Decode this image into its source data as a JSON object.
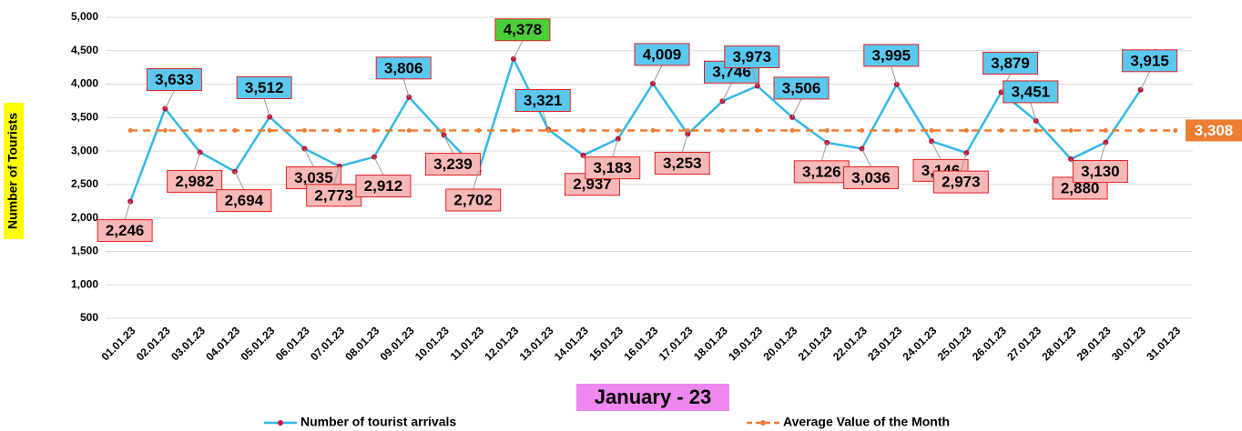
{
  "chart_data": {
    "type": "line",
    "x_label": "January - 23",
    "y_label": "Number of Tourists",
    "categories": [
      "01.01.23",
      "02.01.23",
      "03.01.23",
      "04.01.23",
      "05.01.23",
      "06.01.23",
      "07.01.23",
      "08.01.23",
      "09.01.23",
      "10.01.23",
      "11.01.23",
      "12.01.23",
      "13.01.23",
      "14.01.23",
      "15.01.23",
      "16.01.23",
      "17.01.23",
      "18.01.23",
      "19.01.23",
      "20.01.23",
      "21.01.23",
      "22.01.23",
      "23.01.23",
      "24.01.23",
      "25.01.23",
      "26.01.23",
      "27.01.23",
      "28.01.23",
      "29.01.23",
      "30.01.23",
      "31.01.23"
    ],
    "series": [
      {
        "name": "Number of tourist arrivals",
        "color": "#33b8e8",
        "marker_color": "#c0143c",
        "values": [
          2246,
          3633,
          2982,
          2694,
          3512,
          3035,
          2773,
          2912,
          3806,
          3239,
          2702,
          4378,
          3321,
          2937,
          3183,
          4009,
          3253,
          3746,
          3973,
          3506,
          3126,
          3036,
          3995,
          3146,
          2973,
          3879,
          3451,
          2880,
          3130,
          3915,
          null
        ],
        "value_labels": [
          "2,246",
          "3,633",
          "2,982",
          "2,694",
          "3,512",
          "3,035",
          "2,773",
          "2,912",
          "3,806",
          "3,239",
          "2,702",
          "4,378",
          "3,321",
          "2,937",
          "3,183",
          "4,009",
          "3,253",
          "3,746",
          "3,973",
          "3,506",
          "3,126",
          "3,036",
          "3,995",
          "3,146",
          "2,973",
          "3,879",
          "3,451",
          "2,880",
          "3,130",
          "3,915",
          null
        ]
      },
      {
        "name": "Average Value of the Month",
        "color": "#ed7d31",
        "dashed": true,
        "values": [
          3308,
          3308,
          3308,
          3308,
          3308,
          3308,
          3308,
          3308,
          3308,
          3308,
          3308,
          3308,
          3308,
          3308,
          3308,
          3308,
          3308,
          3308,
          3308,
          3308,
          3308,
          3308,
          3308,
          3308,
          3308,
          3308,
          3308,
          3308,
          3308,
          3308,
          3308
        ],
        "value_labels": [
          null,
          null,
          null,
          null,
          null,
          null,
          null,
          null,
          null,
          null,
          null,
          null,
          null,
          null,
          null,
          null,
          null,
          null,
          null,
          null,
          null,
          null,
          null,
          null,
          null,
          null,
          null,
          null,
          null,
          null,
          "3,308"
        ]
      }
    ],
    "label_colors": {
      "above": "#5bc8f0",
      "below": "#f7b8b8",
      "max": "#4ccd3a",
      "border": "#e02020"
    },
    "ylim": [
      500,
      5000
    ],
    "yticks": [
      500,
      {
        "value": 1000,
        "label": "1,000"
      },
      {
        "value": 1500,
        "label": "1,500"
      },
      {
        "value": 2000,
        "label": "2,000"
      },
      {
        "value": 2500,
        "label": "2,500"
      },
      {
        "value": 3000,
        "label": "3,000"
      },
      {
        "value": 3500,
        "label": "3,500"
      },
      {
        "value": 4000,
        "label": "4,000"
      },
      {
        "value": 4500,
        "label": "4,500"
      },
      {
        "value": 5000,
        "label": "5,000"
      }
    ],
    "grid": true
  }
}
